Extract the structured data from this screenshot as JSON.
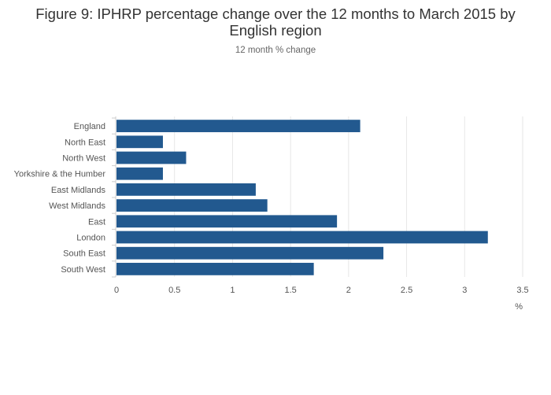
{
  "chart_data": {
    "type": "bar",
    "orientation": "horizontal",
    "title": "Figure 9: IPHRP percentage change over the 12 months to March 2015 by English region",
    "subtitle": "12 month % change",
    "categories": [
      "England",
      "North East",
      "North West",
      "Yorkshire & the Humber",
      "East Midlands",
      "West Midlands",
      "East",
      "London",
      "South East",
      "South West"
    ],
    "values": [
      2.1,
      0.4,
      0.6,
      0.4,
      1.2,
      1.3,
      1.9,
      3.2,
      2.3,
      1.7
    ],
    "xlabel": "%",
    "ylabel": "",
    "xlim": [
      0,
      3.5
    ],
    "xticks": [
      "0",
      "0.5",
      "1",
      "1.5",
      "2",
      "2.5",
      "3",
      "3.5"
    ],
    "grid": true,
    "bar_color": "#22598f"
  }
}
